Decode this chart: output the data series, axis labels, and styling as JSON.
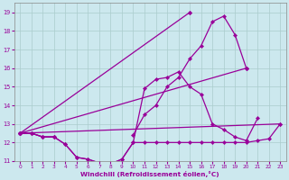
{
  "xlabel": "Windchill (Refroidissement éolien,°C)",
  "x_hours": [
    0,
    1,
    2,
    3,
    4,
    5,
    6,
    7,
    8,
    9,
    10,
    11,
    12,
    13,
    14,
    15,
    16,
    17,
    18,
    19,
    20,
    21,
    22,
    23
  ],
  "curve1_y": [
    12.5,
    12.5,
    12.3,
    12.3,
    11.9,
    11.2,
    11.1,
    10.9,
    10.85,
    11.1,
    12.0,
    12.0,
    12.0,
    12.0,
    12.0,
    12.0,
    12.0,
    12.0,
    12.0,
    12.0,
    12.0,
    12.1,
    12.2,
    13.0
  ],
  "curve2_y": [
    12.5,
    12.5,
    12.3,
    12.3,
    11.9,
    11.2,
    11.1,
    10.9,
    10.85,
    11.1,
    12.0,
    14.9,
    15.4,
    15.5,
    15.8,
    15.0,
    14.6,
    13.0,
    12.7,
    12.3,
    12.1,
    13.3,
    null,
    null
  ],
  "curve3_y": [
    12.5,
    12.5,
    12.3,
    12.3,
    null,
    null,
    null,
    null,
    null,
    null,
    12.4,
    13.5,
    14.0,
    15.0,
    15.5,
    16.5,
    17.2,
    18.5,
    18.8,
    17.8,
    16.0,
    null,
    null,
    null
  ],
  "curve4_y": [
    12.5,
    null,
    null,
    null,
    null,
    null,
    null,
    null,
    null,
    null,
    null,
    null,
    null,
    null,
    null,
    19.0,
    null,
    null,
    null,
    null,
    16.0,
    null,
    null,
    null
  ],
  "bg_color": "#cce8ee",
  "grid_color": "#aacccc",
  "line_color": "#990099",
  "ylim_min": 11.0,
  "ylim_max": 19.5,
  "yticks": [
    11,
    12,
    13,
    14,
    15,
    16,
    17,
    18,
    19
  ],
  "xticks": [
    0,
    1,
    2,
    3,
    4,
    5,
    6,
    7,
    8,
    9,
    10,
    11,
    12,
    13,
    14,
    15,
    16,
    17,
    18,
    19,
    20,
    21,
    22,
    23
  ],
  "straight_lines": [
    {
      "x0": 0,
      "y0": 12.5,
      "x1": 15,
      "y1": 19.0
    },
    {
      "x0": 0,
      "y0": 12.5,
      "x1": 20,
      "y1": 16.0
    },
    {
      "x0": 0,
      "y0": 12.5,
      "x1": 23,
      "y1": 13.0
    }
  ]
}
